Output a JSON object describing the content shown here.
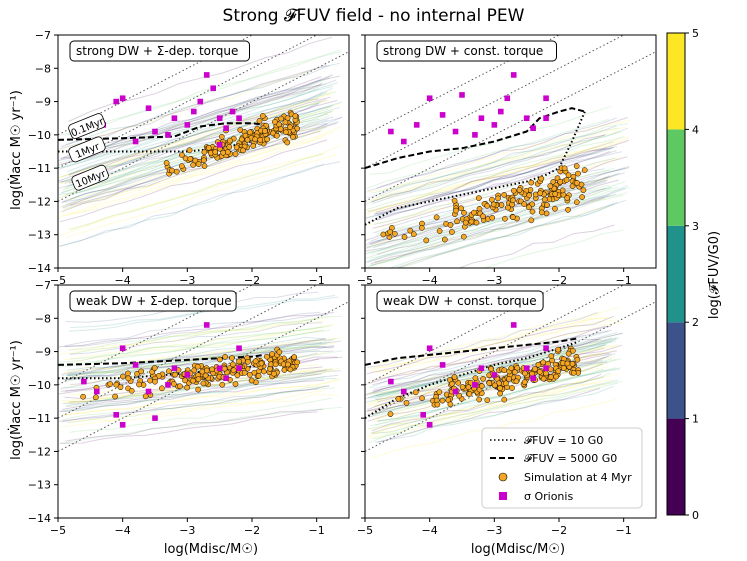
{
  "figure": {
    "title": "Strong 𝓕FUV field - no internal PEW",
    "xlabel": "log(Mdisc/M☉)",
    "ylabel": "log(Ṁacc M☉ yr⁻¹)",
    "colorbar_label": "log(𝓕FUV/G0)"
  },
  "colorbar": {
    "ticks": [
      "0",
      "1",
      "2",
      "3",
      "4",
      "5"
    ],
    "colors": [
      "#440154",
      "#3b528b",
      "#21918c",
      "#5ec962",
      "#fde725"
    ]
  },
  "legend": {
    "dotted": "𝓕FUV = 10 G0",
    "dashed": "𝓕FUV = 5000 G0",
    "sim": "Simulation at 4 Myr",
    "obs": "σ Orionis"
  },
  "colors": {
    "sim_fill": "#f5a623",
    "obs": "#cc00cc"
  },
  "chart_data": [
    {
      "type": "scatter",
      "panel": "strong DW + Σ-dep. torque",
      "xlim": [
        -5,
        -0.5
      ],
      "ylim": [
        -14,
        -7
      ],
      "xticks": [
        "−5",
        "−4",
        "−3",
        "−2",
        "−1"
      ],
      "yticks": [
        "−14",
        "−13",
        "−12",
        "−11",
        "−10",
        "−9",
        "−8",
        "−7"
      ],
      "age_labels": [
        "0.1Myr",
        "1Myr",
        "10Myr"
      ],
      "isochrones": [
        {
          "name": "0.1Myr",
          "x": [
            -5,
            -0.5
          ],
          "y": [
            -10,
            -5.5
          ]
        },
        {
          "name": "1Myr",
          "x": [
            -5,
            -0.5
          ],
          "y": [
            -11,
            -6.5
          ]
        },
        {
          "name": "10Myr",
          "x": [
            -5,
            -0.5
          ],
          "y": [
            -12,
            -7.5
          ]
        }
      ],
      "track_10G0": {
        "x": [
          -5,
          -4,
          -3,
          -2.5,
          -2,
          -1.8
        ],
        "y": [
          -10.5,
          -10.5,
          -10.5,
          -10.4,
          -10.2,
          -10.0
        ]
      },
      "track_5000G0": {
        "x": [
          -5,
          -4,
          -3.2,
          -2.8,
          -2.4,
          -2.0,
          -1.8
        ],
        "y": [
          -10.15,
          -10.1,
          -10.05,
          -9.75,
          -9.65,
          -9.65,
          -9.7
        ]
      },
      "sigma_ori": [
        [
          -4.1,
          -9.0
        ],
        [
          -3.6,
          -9.2
        ],
        [
          -2.8,
          -9.0
        ],
        [
          -2.6,
          -8.6
        ],
        [
          -2.3,
          -9.3
        ],
        [
          -2.5,
          -9.5
        ],
        [
          -3.0,
          -9.7
        ],
        [
          -4.7,
          -9.9
        ],
        [
          -2.7,
          -8.2
        ],
        [
          -3.2,
          -9.5
        ],
        [
          -3.5,
          -9.9
        ],
        [
          -2.4,
          -9.8
        ],
        [
          -4.3,
          -9.7
        ],
        [
          -4.0,
          -8.9
        ],
        [
          -2.9,
          -9.3
        ],
        [
          -3.8,
          -10.2
        ],
        [
          -2.5,
          -10.3
        ],
        [
          -4.5,
          -10.4
        ],
        [
          -3.3,
          -10.0
        ],
        [
          -2.2,
          -9.5
        ]
      ],
      "sim": {
        "x_range": [
          -3.6,
          -1.3
        ],
        "y_center": -10.4,
        "slope": 0.6,
        "spread": 0.28,
        "n": 170
      }
    },
    {
      "type": "scatter",
      "panel": "strong DW + const. torque",
      "xlim": [
        -5,
        -0.5
      ],
      "ylim": [
        -14,
        -7
      ],
      "xticks": [
        "−5",
        "−4",
        "−3",
        "−2",
        "−1"
      ],
      "yticks": [],
      "isochrones": [
        {
          "name": "0.1Myr",
          "x": [
            -5,
            -0.5
          ],
          "y": [
            -10,
            -5.5
          ]
        },
        {
          "name": "1Myr",
          "x": [
            -5,
            -0.5
          ],
          "y": [
            -11,
            -6.5
          ]
        },
        {
          "name": "10Myr",
          "x": [
            -5,
            -0.5
          ],
          "y": [
            -12,
            -7.5
          ]
        }
      ],
      "track_10G0": {
        "x": [
          -5,
          -4.5,
          -4,
          -3.5,
          -3,
          -2.5,
          -2.2,
          -2.0,
          -1.8,
          -1.6
        ],
        "y": [
          -12.7,
          -12.2,
          -12.0,
          -11.8,
          -11.6,
          -11.4,
          -11.2,
          -11.0,
          -10.2,
          -9.3
        ]
      },
      "track_5000G0": {
        "x": [
          -5,
          -4.5,
          -4,
          -3.5,
          -3,
          -2.5,
          -2.3,
          -2.0,
          -1.8,
          -1.6
        ],
        "y": [
          -11.0,
          -10.7,
          -10.5,
          -10.4,
          -10.2,
          -9.9,
          -9.5,
          -9.3,
          -9.2,
          -9.3
        ]
      },
      "sigma_ori": [
        [
          -4.0,
          -8.9
        ],
        [
          -3.8,
          -9.4
        ],
        [
          -3.5,
          -8.8
        ],
        [
          -2.8,
          -8.9
        ],
        [
          -2.7,
          -8.2
        ],
        [
          -2.2,
          -8.9
        ],
        [
          -2.5,
          -9.5
        ],
        [
          -3.0,
          -9.7
        ],
        [
          -4.6,
          -9.9
        ],
        [
          -3.2,
          -9.5
        ],
        [
          -3.6,
          -9.9
        ],
        [
          -2.4,
          -9.8
        ],
        [
          -4.2,
          -9.7
        ],
        [
          -2.9,
          -9.3
        ],
        [
          -3.3,
          -10.0
        ],
        [
          -2.2,
          -9.5
        ],
        [
          -4.4,
          -10.2
        ]
      ],
      "sim": {
        "x_range": [
          -4.9,
          -1.6
        ],
        "y_center": -11.9,
        "slope": 0.55,
        "spread": 0.38,
        "n": 160
      }
    },
    {
      "type": "scatter",
      "panel": "weak DW + Σ-dep. torque",
      "xlim": [
        -5,
        -0.5
      ],
      "ylim": [
        -14,
        -7
      ],
      "xticks": [
        "−5",
        "−4",
        "−3",
        "−2",
        "−1"
      ],
      "yticks": [
        "−14",
        "−13",
        "−12",
        "−11",
        "−10",
        "−9",
        "−8",
        "−7"
      ],
      "isochrones": [
        {
          "name": "0.1Myr",
          "x": [
            -5,
            -0.5
          ],
          "y": [
            -10,
            -5.5
          ]
        },
        {
          "name": "1Myr",
          "x": [
            -5,
            -0.5
          ],
          "y": [
            -11,
            -6.5
          ]
        },
        {
          "name": "10Myr",
          "x": [
            -5,
            -0.5
          ],
          "y": [
            -12,
            -7.5
          ]
        }
      ],
      "track_10G0": {
        "x": [
          -5,
          -4,
          -3,
          -2.5,
          -2.0,
          -1.8
        ],
        "y": [
          -9.8,
          -9.8,
          -9.65,
          -9.55,
          -9.45,
          -9.4
        ]
      },
      "track_5000G0": {
        "x": [
          -5,
          -4,
          -3,
          -2.5,
          -2.0,
          -1.8
        ],
        "y": [
          -9.4,
          -9.35,
          -9.25,
          -9.2,
          -9.15,
          -9.1
        ]
      },
      "sigma_ori": [
        [
          -4.0,
          -8.9
        ],
        [
          -3.8,
          -9.4
        ],
        [
          -2.7,
          -8.2
        ],
        [
          -2.2,
          -8.9
        ],
        [
          -2.5,
          -9.5
        ],
        [
          -3.0,
          -9.7
        ],
        [
          -4.6,
          -9.9
        ],
        [
          -3.2,
          -9.5
        ],
        [
          -3.6,
          -10.2
        ],
        [
          -2.4,
          -9.8
        ],
        [
          -4.1,
          -10.9
        ],
        [
          -4.0,
          -11.2
        ],
        [
          -3.3,
          -10.0
        ],
        [
          -2.2,
          -9.5
        ],
        [
          -4.4,
          -10.2
        ],
        [
          -3.5,
          -11.0
        ]
      ],
      "sim": {
        "x_range": [
          -4.9,
          -1.3
        ],
        "y_center": -9.6,
        "slope": 0.25,
        "spread": 0.28,
        "n": 200
      }
    },
    {
      "type": "scatter",
      "panel": "weak DW + const. torque",
      "xlim": [
        -5,
        -0.5
      ],
      "ylim": [
        -14,
        -7
      ],
      "xticks": [
        "−5",
        "−4",
        "−3",
        "−2",
        "−1"
      ],
      "yticks": [],
      "isochrones": [
        {
          "name": "0.1Myr",
          "x": [
            -5,
            -0.5
          ],
          "y": [
            -10,
            -5.5
          ]
        },
        {
          "name": "1Myr",
          "x": [
            -5,
            -0.5
          ],
          "y": [
            -11,
            -6.5
          ]
        },
        {
          "name": "10Myr",
          "x": [
            -5,
            -0.5
          ],
          "y": [
            -12,
            -7.5
          ]
        }
      ],
      "track_10G0": {
        "x": [
          -5,
          -4.5,
          -4,
          -3.5,
          -3,
          -2.5,
          -2.0,
          -1.7
        ],
        "y": [
          -11.0,
          -10.4,
          -10.0,
          -9.7,
          -9.4,
          -9.2,
          -8.9,
          -8.7
        ]
      },
      "track_5000G0": {
        "x": [
          -5,
          -4.5,
          -4,
          -3.5,
          -3,
          -2.5,
          -2.0,
          -1.7
        ],
        "y": [
          -9.4,
          -9.2,
          -9.1,
          -9.0,
          -8.9,
          -8.8,
          -8.7,
          -8.6
        ]
      },
      "sigma_ori": [
        [
          -4.0,
          -8.9
        ],
        [
          -3.8,
          -9.4
        ],
        [
          -2.7,
          -8.2
        ],
        [
          -2.2,
          -8.9
        ],
        [
          -2.5,
          -9.5
        ],
        [
          -3.0,
          -9.7
        ],
        [
          -4.6,
          -9.9
        ],
        [
          -3.2,
          -9.5
        ],
        [
          -3.6,
          -10.2
        ],
        [
          -2.4,
          -9.8
        ],
        [
          -4.1,
          -10.9
        ],
        [
          -4.0,
          -11.2
        ],
        [
          -3.3,
          -10.0
        ],
        [
          -2.2,
          -9.5
        ],
        [
          -4.4,
          -10.2
        ]
      ],
      "sim": {
        "x_range": [
          -4.9,
          -1.7
        ],
        "y_center": -9.7,
        "slope": 0.45,
        "spread": 0.28,
        "n": 200
      }
    }
  ]
}
